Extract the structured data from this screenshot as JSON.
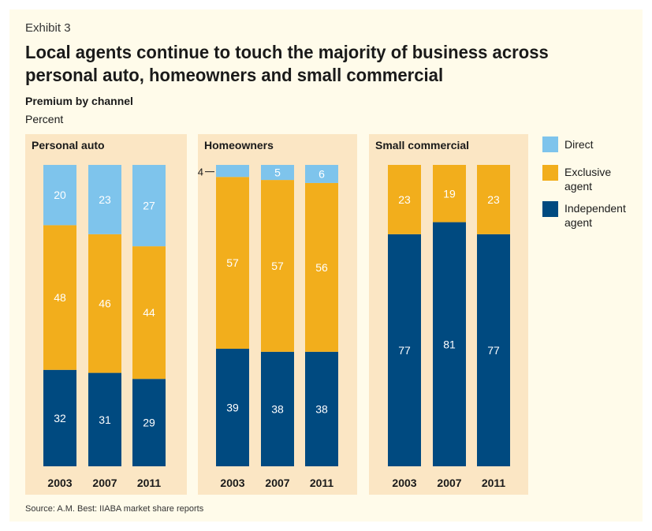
{
  "header": {
    "exhibit": "Exhibit 3",
    "title": "Local agents continue to touch the majority of business across personal auto, homeowners and small commercial",
    "subtitle": "Premium by channel",
    "unit": "Percent"
  },
  "source": "Source: A.M. Best: IIABA market share reports",
  "colors": {
    "direct": "#7ec4ec",
    "exclusive": "#f2ae1c",
    "independent": "#004a80",
    "panel": "#fbe6c4",
    "background": "#fffbea"
  },
  "legend": [
    {
      "key": "direct",
      "label": "Direct"
    },
    {
      "key": "exclusive",
      "label": "Exclusive agent"
    },
    {
      "key": "independent",
      "label": "Independent agent"
    }
  ],
  "chart_data": [
    {
      "type": "bar",
      "stacked": true,
      "title": "Personal auto",
      "categories": [
        "2003",
        "2007",
        "2011"
      ],
      "ylim": [
        0,
        100
      ],
      "series": [
        {
          "name": "Independent agent",
          "key": "independent",
          "values": [
            32,
            31,
            29
          ]
        },
        {
          "name": "Exclusive agent",
          "key": "exclusive",
          "values": [
            48,
            46,
            44
          ]
        },
        {
          "name": "Direct",
          "key": "direct",
          "values": [
            20,
            23,
            27
          ]
        }
      ]
    },
    {
      "type": "bar",
      "stacked": true,
      "title": "Homeowners",
      "categories": [
        "2003",
        "2007",
        "2011"
      ],
      "ylim": [
        0,
        100
      ],
      "series": [
        {
          "name": "Independent agent",
          "key": "independent",
          "values": [
            39,
            38,
            38
          ]
        },
        {
          "name": "Exclusive agent",
          "key": "exclusive",
          "values": [
            57,
            57,
            56
          ]
        },
        {
          "name": "Direct",
          "key": "direct",
          "values": [
            4,
            5,
            6
          ]
        }
      ]
    },
    {
      "type": "bar",
      "stacked": true,
      "title": "Small commercial",
      "categories": [
        "2003",
        "2007",
        "2011"
      ],
      "ylim": [
        0,
        100
      ],
      "series": [
        {
          "name": "Independent agent",
          "key": "independent",
          "values": [
            77,
            81,
            77
          ]
        },
        {
          "name": "Exclusive agent",
          "key": "exclusive",
          "values": [
            23,
            19,
            23
          ]
        }
      ]
    }
  ]
}
